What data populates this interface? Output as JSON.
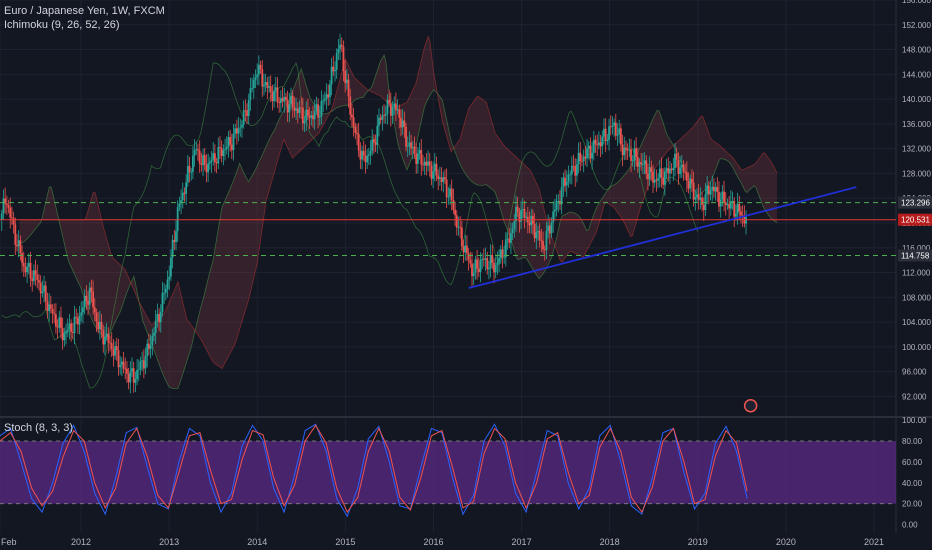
{
  "header": {
    "symbol": "Euro / Japanese Yen, 1W, FXCM",
    "indicator": "Ichimoku (9, 26, 52, 26)",
    "oscillator": "Stoch (8, 3, 3)"
  },
  "colors": {
    "background": "#131722",
    "grid": "#1e2230",
    "up": "#26a69a",
    "down": "#ef5350",
    "trendline": "#2130d8",
    "support": "#4caf50",
    "resistance": "#e53935",
    "stoch_k": "#2962ff",
    "stoch_d": "#ef5350",
    "stoch_band": "#5b2a86"
  },
  "chart_data": [
    {
      "type": "candlestick",
      "x_ticks": [
        "Feb",
        "2012",
        "2013",
        "2014",
        "2015",
        "2016",
        "2017",
        "2018",
        "2019",
        "2020",
        "2021"
      ],
      "y_ticks": [
        92,
        96,
        100,
        104,
        108,
        112,
        116,
        120,
        124,
        128,
        132,
        136,
        140,
        144,
        148,
        152,
        156
      ],
      "ylim": [
        89,
        156
      ],
      "price_labels": [
        {
          "text": "123.296",
          "value": 123.296
        },
        {
          "text": "120.531",
          "value": 120.531
        },
        {
          "text": "114.758",
          "value": 114.758
        }
      ],
      "horizontal_lines": [
        {
          "value": 123.296,
          "style": "dashed",
          "color": "support"
        },
        {
          "value": 120.531,
          "style": "solid",
          "color": "resistance"
        },
        {
          "value": 114.758,
          "style": "dashed",
          "color": "support"
        }
      ],
      "trendline": {
        "from": {
          "x": "2016.4",
          "y": 109.5
        },
        "to": {
          "x": "2020.8",
          "y": 125.8
        }
      },
      "price_path": [
        [
          "2011.05",
          119
        ],
        [
          "2011.15",
          124
        ],
        [
          "2011.25",
          118
        ],
        [
          "2011.35",
          113
        ],
        [
          "2011.5",
          111
        ],
        [
          "2011.65",
          106
        ],
        [
          "2011.8",
          102
        ],
        [
          "2011.95",
          104
        ],
        [
          "2012.1",
          109
        ],
        [
          "2012.2",
          103
        ],
        [
          "2012.35",
          100
        ],
        [
          "2012.5",
          96
        ],
        [
          "2012.6",
          95
        ],
        [
          "2012.75",
          99
        ],
        [
          "2012.9",
          106
        ],
        [
          "2013.0",
          112
        ],
        [
          "2013.1",
          122
        ],
        [
          "2013.2",
          127
        ],
        [
          "2013.3",
          132
        ],
        [
          "2013.4",
          129
        ],
        [
          "2013.55",
          131
        ],
        [
          "2013.7",
          133
        ],
        [
          "2013.85",
          137
        ],
        [
          "2014.0",
          145
        ],
        [
          "2014.1",
          142
        ],
        [
          "2014.25",
          140
        ],
        [
          "2014.4",
          139
        ],
        [
          "2014.55",
          137
        ],
        [
          "2014.7",
          138
        ],
        [
          "2014.8",
          141
        ],
        [
          "2014.9",
          147
        ],
        [
          "2014.95",
          149
        ],
        [
          "2015.0",
          143
        ],
        [
          "2015.1",
          135
        ],
        [
          "2015.2",
          130
        ],
        [
          "2015.3",
          132
        ],
        [
          "2015.4",
          137
        ],
        [
          "2015.5",
          139
        ],
        [
          "2015.6",
          138
        ],
        [
          "2015.7",
          133
        ],
        [
          "2015.8",
          131
        ],
        [
          "2015.95",
          129
        ],
        [
          "2016.1",
          127
        ],
        [
          "2016.2",
          124
        ],
        [
          "2016.3",
          118
        ],
        [
          "2016.45",
          112
        ],
        [
          "2016.55",
          114
        ],
        [
          "2016.7",
          113
        ],
        [
          "2016.85",
          117
        ],
        [
          "2016.95",
          122
        ],
        [
          "2017.05",
          121
        ],
        [
          "2017.15",
          119
        ],
        [
          "2017.25",
          116
        ],
        [
          "2017.35",
          121
        ],
        [
          "2017.5",
          127
        ],
        [
          "2017.65",
          130
        ],
        [
          "2017.8",
          132
        ],
        [
          "2017.95",
          134
        ],
        [
          "2018.05",
          136
        ],
        [
          "2018.15",
          132
        ],
        [
          "2018.25",
          131
        ],
        [
          "2018.4",
          129
        ],
        [
          "2018.5",
          127
        ],
        [
          "2018.65",
          128
        ],
        [
          "2018.75",
          130
        ],
        [
          "2018.85",
          128
        ],
        [
          "2018.95",
          125
        ],
        [
          "2019.05",
          123
        ],
        [
          "2019.15",
          126
        ],
        [
          "2019.25",
          124
        ],
        [
          "2019.35",
          123
        ],
        [
          "2019.45",
          122
        ],
        [
          "2019.55",
          120.531
        ]
      ]
    },
    {
      "type": "line",
      "title": "Stoch (8, 3, 3)",
      "y_ticks": [
        0,
        20,
        40,
        60,
        80,
        100
      ],
      "ylim": [
        -8,
        102
      ],
      "band": [
        20,
        80
      ],
      "series": [
        {
          "values": [
            85,
            92,
            60,
            25,
            12,
            40,
            78,
            95,
            70,
            30,
            10,
            45,
            88,
            93,
            55,
            20,
            15,
            60,
            92,
            85,
            40,
            12,
            30,
            75,
            95,
            80,
            35,
            12,
            48,
            90,
            96,
            70,
            25,
            8,
            35,
            82,
            94,
            60,
            18,
            15,
            55,
            92,
            88,
            45,
            10,
            28,
            80,
            96,
            75,
            30,
            12,
            50,
            90,
            85,
            40,
            15,
            35,
            85,
            95,
            60,
            18,
            10,
            45,
            88,
            92,
            50,
            15,
            30,
            78,
            94,
            70,
            25
          ]
        },
        {
          "values": [
            80,
            88,
            70,
            35,
            18,
            32,
            65,
            90,
            80,
            40,
            16,
            35,
            78,
            92,
            65,
            28,
            16,
            50,
            85,
            88,
            52,
            20,
            24,
            62,
            90,
            86,
            45,
            18,
            38,
            80,
            95,
            78,
            35,
            12,
            26,
            70,
            92,
            70,
            26,
            14,
            45,
            85,
            90,
            55,
            16,
            22,
            68,
            92,
            82,
            40,
            16,
            40,
            82,
            88,
            50,
            20,
            28,
            74,
            92,
            70,
            26,
            12,
            36,
            80,
            92,
            60,
            20,
            24,
            66,
            90,
            78,
            32
          ]
        }
      ]
    }
  ]
}
